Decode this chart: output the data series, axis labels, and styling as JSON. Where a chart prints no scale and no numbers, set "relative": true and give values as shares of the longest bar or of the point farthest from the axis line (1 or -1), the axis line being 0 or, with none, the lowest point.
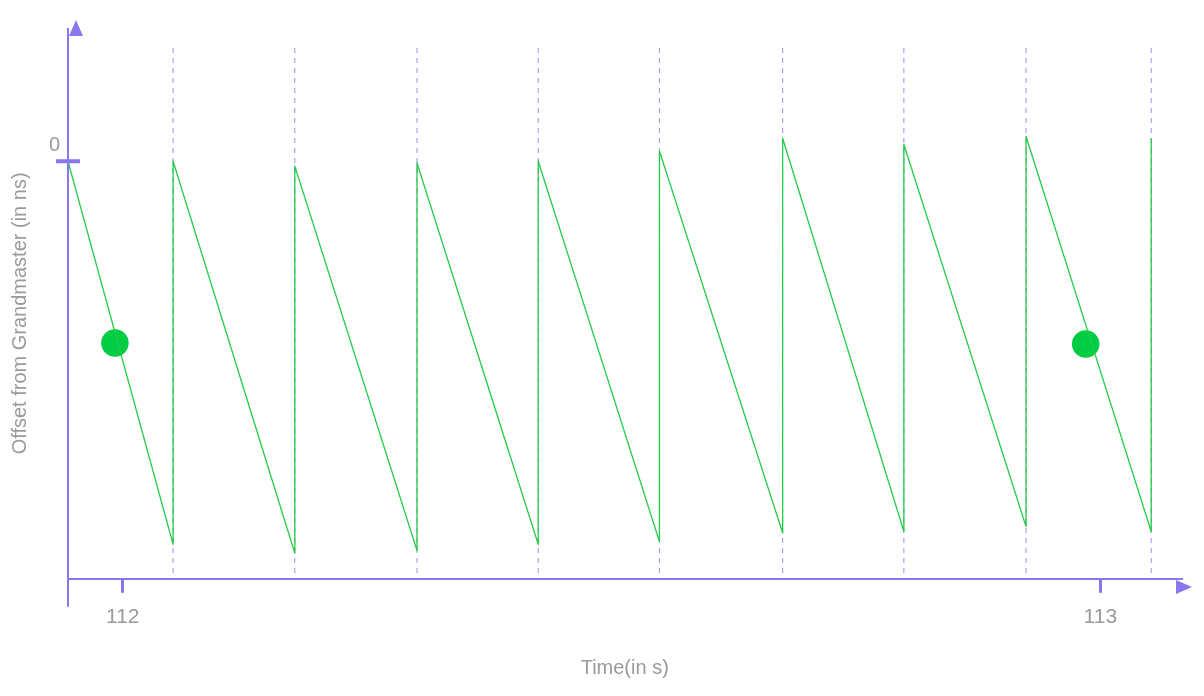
{
  "chart_data": {
    "type": "line",
    "xlabel": "Time(in s)",
    "ylabel": "Offset from Grandmaster (in ns)",
    "relative": true,
    "xlim": [
      111.944,
      113.083
    ],
    "xticks": [
      112,
      113
    ],
    "marker": "none",
    "series": [
      {
        "color": "#22cc44",
        "x": [
          111.944,
          112.0515,
          112.0515,
          112.176,
          112.176,
          112.301,
          112.301,
          112.425,
          112.425,
          112.549,
          112.549,
          112.675,
          112.675,
          112.799,
          112.799,
          112.924,
          112.924,
          113.052,
          113.052
        ],
        "values": [
          0.944,
          0.078,
          0.944,
          0.058,
          0.933,
          0.064,
          0.94,
          0.078,
          0.944,
          0.084,
          0.967,
          0.104,
          0.996,
          0.107,
          0.982,
          0.118,
          1,
          0.107,
          0.996
        ]
      },
      {
        "type": "scatter",
        "color": "#00cc44",
        "marker": "circle",
        "x": [
          111.992,
          112.985
        ],
        "values": [
          0.533,
          0.531
        ]
      }
    ],
    "ref_lines": [
      {
        "axis": "x",
        "value": 112.0515,
        "color": "#9b8cf5",
        "line_style": "dashed"
      },
      {
        "axis": "x",
        "value": 112.176,
        "color": "#9b8cf5",
        "line_style": "dashed"
      },
      {
        "axis": "x",
        "value": 112.301,
        "color": "#9b8cf5",
        "line_style": "dashed"
      },
      {
        "axis": "x",
        "value": 112.425,
        "color": "#9b8cf5",
        "line_style": "dashed"
      },
      {
        "axis": "x",
        "value": 112.549,
        "color": "#9b8cf5",
        "line_style": "dashed"
      },
      {
        "axis": "x",
        "value": 112.675,
        "color": "#9b8cf5",
        "line_style": "dashed"
      },
      {
        "axis": "x",
        "value": 112.799,
        "color": "#9b8cf5",
        "line_style": "dashed"
      },
      {
        "axis": "x",
        "value": 112.924,
        "color": "#9b8cf5",
        "line_style": "dashed"
      },
      {
        "axis": "x",
        "value": 113.052,
        "color": "#9b8cf5",
        "line_style": "dashed"
      }
    ],
    "annotations": [
      "0"
    ]
  }
}
